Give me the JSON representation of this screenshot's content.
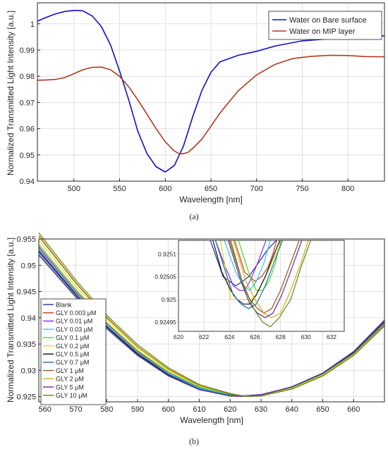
{
  "chart_data": [
    {
      "type": "line",
      "caption": "(a)",
      "xlabel": "Wavelength [nm]",
      "ylabel": "Normalized Transmitted Light Intensity [a.u.]",
      "xlim": [
        460,
        840
      ],
      "ylim": [
        0.94,
        1.008
      ],
      "x_ticks": [
        500,
        550,
        600,
        650,
        700,
        750,
        800
      ],
      "y_ticks": [
        0.94,
        0.95,
        0.96,
        0.97,
        0.98,
        0.99,
        1
      ],
      "grid": true,
      "legend_position": "top-right",
      "series": [
        {
          "name": "Water on Bare surface",
          "color": "#1010c8",
          "x": [
            460,
            470,
            480,
            490,
            500,
            505,
            510,
            520,
            530,
            540,
            550,
            560,
            570,
            580,
            590,
            600,
            610,
            620,
            630,
            640,
            650,
            660,
            680,
            700,
            720,
            750,
            800,
            840
          ],
          "y": [
            1.001,
            1.0025,
            1.0038,
            1.0047,
            1.0051,
            1.0051,
            1.0049,
            1.003,
            0.999,
            0.992,
            0.982,
            0.971,
            0.959,
            0.9505,
            0.9455,
            0.9435,
            0.946,
            0.9535,
            0.9645,
            0.9745,
            0.9815,
            0.9855,
            0.988,
            0.9895,
            0.9915,
            0.9935,
            0.9948,
            0.9954
          ]
        },
        {
          "name": "Water on MIP layer",
          "color": "#b03a1e",
          "x": [
            460,
            470,
            480,
            490,
            500,
            510,
            520,
            530,
            540,
            550,
            560,
            570,
            580,
            590,
            600,
            610,
            615,
            620,
            625,
            630,
            640,
            650,
            660,
            680,
            700,
            720,
            740,
            760,
            780,
            800,
            820,
            840
          ],
          "y": [
            0.9785,
            0.9786,
            0.9788,
            0.9795,
            0.981,
            0.9825,
            0.9834,
            0.9835,
            0.9825,
            0.98,
            0.976,
            0.971,
            0.9655,
            0.96,
            0.955,
            0.9515,
            0.9505,
            0.9505,
            0.951,
            0.9525,
            0.956,
            0.961,
            0.966,
            0.9745,
            0.9805,
            0.9845,
            0.9868,
            0.9876,
            0.988,
            0.9879,
            0.9875,
            0.9874
          ]
        }
      ]
    },
    {
      "type": "line",
      "caption": "(b)",
      "xlabel": "Wavelength [nm]",
      "ylabel": "Normalized Transmitted Light Intensity [a.u.]",
      "xlim": [
        558,
        670
      ],
      "ylim": [
        0.924,
        0.955
      ],
      "x_ticks": [
        560,
        570,
        580,
        590,
        600,
        610,
        620,
        630,
        640,
        650,
        660
      ],
      "y_ticks": [
        0.925,
        0.93,
        0.935,
        0.94,
        0.945,
        0.95,
        0.955
      ],
      "grid": true,
      "legend_position": "left",
      "series": [
        {
          "name": "Blank",
          "color": "#2030b0",
          "x": [
            558,
            570,
            580,
            590,
            600,
            610,
            620,
            625,
            630,
            640,
            650,
            660,
            670
          ],
          "y": [
            0.9528,
            0.9445,
            0.9384,
            0.9332,
            0.9292,
            0.9265,
            0.9253,
            0.9252,
            0.9254,
            0.9268,
            0.9293,
            0.9332,
            0.939
          ]
        },
        {
          "name": "GLY 0.003 μM",
          "color": "#c8401c",
          "x": [
            558,
            570,
            580,
            590,
            600,
            610,
            620,
            625,
            630,
            640,
            650,
            660,
            670
          ],
          "y": [
            0.9536,
            0.9451,
            0.9389,
            0.9336,
            0.9295,
            0.9267,
            0.9254,
            0.9251,
            0.9253,
            0.9267,
            0.9292,
            0.9331,
            0.9389
          ]
        },
        {
          "name": "GLY 0.01 μM",
          "color": "#8a2be2",
          "x": [
            558,
            570,
            580,
            590,
            600,
            610,
            620,
            625,
            630,
            640,
            650,
            660,
            670
          ],
          "y": [
            0.9532,
            0.9448,
            0.9387,
            0.9334,
            0.9294,
            0.9266,
            0.9254,
            0.9251,
            0.9254,
            0.9268,
            0.9293,
            0.9333,
            0.9391
          ]
        },
        {
          "name": "GLY 0.03 μM",
          "color": "#30c8e8",
          "x": [
            558,
            570,
            580,
            590,
            600,
            610,
            620,
            625,
            630,
            640,
            650,
            660,
            670
          ],
          "y": [
            0.9534,
            0.9449,
            0.9387,
            0.9334,
            0.9294,
            0.9266,
            0.9253,
            0.9251,
            0.9253,
            0.9267,
            0.9292,
            0.9331,
            0.9388
          ]
        },
        {
          "name": "GLY 0.1 μM",
          "color": "#48d820",
          "x": [
            558,
            570,
            580,
            590,
            600,
            610,
            620,
            625,
            630,
            640,
            650,
            660,
            670
          ],
          "y": [
            0.954,
            0.9454,
            0.9391,
            0.9338,
            0.9297,
            0.9268,
            0.9254,
            0.9251,
            0.9253,
            0.9267,
            0.9292,
            0.9331,
            0.9388
          ]
        },
        {
          "name": "GLY 0.2 μM",
          "color": "#e8d818",
          "x": [
            558,
            570,
            580,
            590,
            600,
            610,
            620,
            625,
            630,
            640,
            650,
            660,
            670
          ],
          "y": [
            0.9548,
            0.946,
            0.9396,
            0.9342,
            0.93,
            0.927,
            0.9255,
            0.9251,
            0.9252,
            0.9266,
            0.9291,
            0.933,
            0.9387
          ]
        },
        {
          "name": "GLY 0.5 μM",
          "color": "#101010",
          "x": [
            558,
            570,
            580,
            590,
            600,
            610,
            620,
            625,
            630,
            640,
            650,
            660,
            670
          ],
          "y": [
            0.9526,
            0.9444,
            0.9383,
            0.9331,
            0.9291,
            0.9264,
            0.9252,
            0.925,
            0.9253,
            0.9268,
            0.9294,
            0.9334,
            0.9393
          ]
        },
        {
          "name": "GLY 0.7 μM",
          "color": "#1e6fb8",
          "x": [
            558,
            570,
            580,
            590,
            600,
            610,
            620,
            625,
            630,
            640,
            650,
            660,
            670
          ],
          "y": [
            0.9522,
            0.9441,
            0.9381,
            0.9329,
            0.929,
            0.9264,
            0.9252,
            0.925,
            0.9253,
            0.9268,
            0.9294,
            0.9335,
            0.9394
          ]
        },
        {
          "name": "GLY 1 μM",
          "color": "#8a5a1c",
          "x": [
            558,
            570,
            580,
            590,
            600,
            610,
            620,
            625,
            630,
            640,
            650,
            660,
            670
          ],
          "y": [
            0.9555,
            0.9466,
            0.94,
            0.9345,
            0.9302,
            0.9271,
            0.9255,
            0.925,
            0.9252,
            0.9265,
            0.929,
            0.9329,
            0.9386
          ]
        },
        {
          "name": "GLY 2 μM",
          "color": "#d8a820",
          "x": [
            558,
            570,
            580,
            590,
            600,
            610,
            620,
            625,
            630,
            640,
            650,
            660,
            670
          ],
          "y": [
            0.9558,
            0.9468,
            0.9402,
            0.9346,
            0.9303,
            0.9272,
            0.9256,
            0.925,
            0.9252,
            0.9265,
            0.929,
            0.9329,
            0.9385
          ]
        },
        {
          "name": "GLY 5 μM",
          "color": "#6a2a8a",
          "x": [
            558,
            570,
            580,
            590,
            600,
            610,
            620,
            625,
            630,
            640,
            650,
            660,
            670
          ],
          "y": [
            0.9519,
            0.9439,
            0.9379,
            0.9328,
            0.9289,
            0.9263,
            0.9251,
            0.925,
            0.9253,
            0.9269,
            0.9295,
            0.9336,
            0.9396
          ]
        },
        {
          "name": "GLY 10 μM",
          "color": "#5a8a20",
          "x": [
            558,
            570,
            580,
            590,
            600,
            610,
            620,
            625,
            630,
            640,
            650,
            660,
            670
          ],
          "y": [
            0.9562,
            0.9472,
            0.9405,
            0.9349,
            0.9305,
            0.9273,
            0.9256,
            0.925,
            0.9251,
            0.9264,
            0.9289,
            0.9328,
            0.9384
          ]
        }
      ],
      "inset": {
        "xlim": [
          620,
          633
        ],
        "ylim": [
          0.92493,
          0.92513
        ],
        "x_ticks": [
          620,
          622,
          624,
          626,
          628,
          630,
          632
        ],
        "y_ticks": [
          0.92495,
          0.925,
          0.92505,
          0.9251
        ],
        "series": [
          {
            "name": "Blank",
            "x": [
              622.5,
              623.5,
              624.5,
              625,
              625.5,
              626,
              627,
              628
            ],
            "y": [
              0.92513,
              0.92505,
              0.92503,
              0.92504,
              0.92505,
              0.92507,
              0.92511,
              0.92514
            ]
          },
          {
            "name": "GLY 0.003 μM",
            "x": [
              624.4,
              625.2,
              626,
              626.5,
              627,
              627.4,
              627.8
            ],
            "y": [
              0.92513,
              0.92506,
              0.92504,
              0.92505,
              0.92507,
              0.9251,
              0.92514
            ]
          },
          {
            "name": "GLY 0.01 μM",
            "x": [
              622.9,
              623.7,
              624.3,
              624.8,
              625.2,
              625.6,
              626.2,
              627
            ],
            "y": [
              0.92513,
              0.92507,
              0.92503,
              0.92502,
              0.92502,
              0.92504,
              0.92508,
              0.92514
            ]
          },
          {
            "name": "GLY 0.03 μM",
            "x": [
              623.6,
              624.5,
              625.1,
              625.6,
              626.1,
              626.7,
              627.3
            ],
            "y": [
              0.92513,
              0.92506,
              0.92503,
              0.92502,
              0.92504,
              0.92508,
              0.92514
            ]
          },
          {
            "name": "GLY 0.1 μM",
            "x": [
              624.7,
              625.5,
              626.1,
              626.6,
              627.1,
              627.6,
              628.1
            ],
            "y": [
              0.92513,
              0.92506,
              0.92502,
              0.92502,
              0.92504,
              0.92508,
              0.92514
            ]
          },
          {
            "name": "GLY 0.2 μM",
            "x": [
              623.3,
              623.8,
              624.1,
              624.6,
              625.1,
              625.6,
              626.1,
              626.8,
              627.8,
              628.3
            ],
            "y": [
              0.92513,
              0.92505,
              0.925,
              0.925,
              0.925,
              0.925,
              0.92501,
              0.92505,
              0.92511,
              0.92514
            ]
          },
          {
            "name": "GLY 0.5 μM",
            "x": [
              622.7,
              623.4,
              624.1,
              624.6,
              625.1,
              625.6,
              626.1,
              626.8,
              627.5,
              628.1
            ],
            "y": [
              0.92513,
              0.92506,
              0.92502,
              0.925,
              0.92499,
              0.92499,
              0.92501,
              0.92505,
              0.9251,
              0.92514
            ]
          },
          {
            "name": "GLY 0.7 μM",
            "x": [
              622.9,
              623.7,
              624.3,
              624.9,
              625.5,
              626.1,
              626.8,
              627.6,
              628.3
            ],
            "y": [
              0.92513,
              0.92506,
              0.92501,
              0.92499,
              0.92498,
              0.92499,
              0.92503,
              0.92509,
              0.92514
            ]
          },
          {
            "name": "GLY 1 μM",
            "x": [
              624,
              625,
              625.6,
              626.2,
              626.7,
              627.3,
              628,
              628.8,
              629.6
            ],
            "y": [
              0.92513,
              0.92504,
              0.925,
              0.92498,
              0.92497,
              0.92498,
              0.92502,
              0.92508,
              0.92514
            ]
          },
          {
            "name": "GLY 2 μM",
            "x": [
              624.3,
              625.3,
              626,
              626.7,
              627.3,
              628,
              628.8,
              629.6,
              630.3
            ],
            "y": [
              0.92513,
              0.92504,
              0.925,
              0.92497,
              0.92496,
              0.92497,
              0.92502,
              0.92508,
              0.92514
            ]
          },
          {
            "name": "GLY 5 μM",
            "x": [
              623.9,
              624.9,
              625.6,
              626.2,
              626.8,
              627.4,
              628.1,
              628.9,
              629.8
            ],
            "y": [
              0.92513,
              0.92504,
              0.92499,
              0.92497,
              0.92496,
              0.92497,
              0.92501,
              0.92507,
              0.92514
            ]
          },
          {
            "name": "GLY 10 μM",
            "x": [
              624.1,
              625.1,
              625.9,
              626.6,
              627.2,
              627.9,
              628.8,
              629.6,
              630.5
            ],
            "y": [
              0.92513,
              0.92503,
              0.92498,
              0.92495,
              0.92494,
              0.92496,
              0.925,
              0.92507,
              0.92514
            ]
          }
        ]
      }
    }
  ]
}
